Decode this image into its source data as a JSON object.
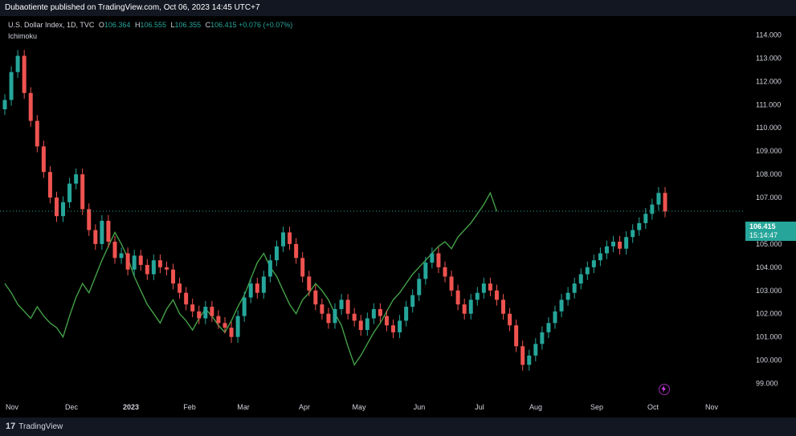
{
  "header": {
    "publish_line": "Dubaotiente published on TradingView.com, Oct 06, 2023 14:45 UTC+7"
  },
  "legend": {
    "symbol": "U.S. Dollar Index, 1D, TVC",
    "o_label": "O",
    "o_value": "106.364",
    "h_label": "H",
    "h_value": "106.555",
    "l_label": "L",
    "l_value": "106.355",
    "c_label": "C",
    "c_value": "106.415",
    "change": "+0.076 (+0.07%)",
    "indicator": "Ichimoku"
  },
  "price_label": {
    "value": "106.415",
    "countdown": "15:14:47"
  },
  "footer": {
    "logo_mark": "17",
    "logo_text": "TradingView"
  },
  "colors": {
    "up": "#26a69a",
    "down": "#ef5350",
    "ichimoku_line": "#43a047",
    "background": "#000000",
    "price_line": "#26a69a"
  },
  "chart_data": {
    "type": "candlestick",
    "y_axis_labels": [
      "114.000",
      "113.000",
      "112.000",
      "111.000",
      "110.000",
      "109.000",
      "108.000",
      "107.000",
      "105.000",
      "104.000",
      "103.000",
      "102.000",
      "101.000",
      "100.000",
      "99.000"
    ],
    "ylim": [
      98.5,
      114.5
    ],
    "x_axis_labels": [
      "Nov",
      "Dec",
      "2023",
      "Feb",
      "Mar",
      "Apr",
      "May",
      "Jun",
      "Jul",
      "Aug",
      "Sep",
      "Oct",
      "Nov"
    ],
    "last_price": 106.415,
    "closes": [
      111.2,
      112.4,
      113.1,
      111.5,
      110.3,
      109.2,
      108.1,
      107.0,
      106.2,
      106.8,
      107.6,
      108.0,
      106.5,
      105.6,
      105.0,
      106.0,
      105.1,
      104.4,
      104.6,
      103.9,
      104.5,
      104.1,
      103.7,
      104.3,
      104.0,
      103.9,
      103.3,
      102.9,
      102.4,
      102.1,
      101.8,
      102.3,
      101.9,
      101.6,
      101.4,
      101.0,
      101.9,
      102.7,
      103.3,
      102.9,
      103.6,
      104.3,
      104.9,
      105.5,
      105.0,
      104.4,
      103.6,
      103.0,
      102.4,
      102.0,
      101.6,
      102.2,
      102.6,
      102.0,
      101.7,
      101.3,
      101.8,
      102.2,
      101.9,
      101.5,
      101.2,
      101.7,
      102.3,
      102.8,
      103.5,
      104.2,
      104.6,
      104.0,
      103.6,
      103.0,
      102.4,
      102.0,
      102.6,
      102.9,
      103.3,
      103.0,
      102.6,
      102.0,
      101.5,
      100.6,
      99.8,
      100.2,
      100.7,
      101.2,
      101.6,
      102.1,
      102.6,
      102.9,
      103.3,
      103.7,
      104.0,
      104.3,
      104.6,
      104.9,
      105.1,
      104.8,
      105.3,
      105.6,
      105.9,
      106.3,
      106.7,
      107.2,
      106.4
    ]
  }
}
